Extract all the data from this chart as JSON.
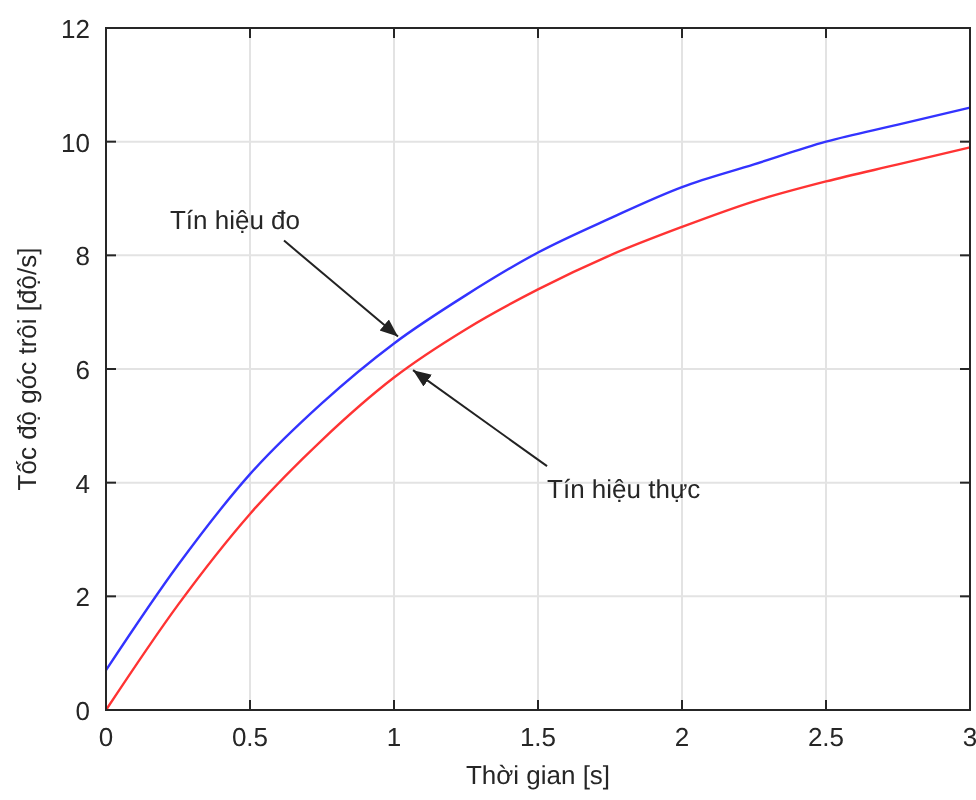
{
  "chart_data": {
    "type": "line",
    "xlabel": "Thời gian [s]",
    "ylabel": "Tốc độ góc trôi [độ/s]",
    "x": [
      0,
      0.25,
      0.5,
      0.75,
      1,
      1.25,
      1.5,
      1.75,
      2,
      2.25,
      2.5,
      2.75,
      3
    ],
    "series": [
      {
        "color": "#3333ff",
        "values": [
          0.7,
          2.55,
          4.15,
          5.4,
          6.45,
          7.3,
          8.05,
          8.65,
          9.2,
          9.6,
          10.0,
          10.3,
          10.6
        ]
      },
      {
        "color": "#ff3333",
        "values": [
          0,
          1.85,
          3.45,
          4.75,
          5.85,
          6.7,
          7.4,
          8.0,
          8.5,
          8.95,
          9.3,
          9.6,
          9.9
        ]
      }
    ],
    "xlim": [
      0,
      3
    ],
    "xticks": [
      0,
      0.5,
      1,
      1.5,
      2,
      2.5,
      3
    ],
    "ylim": [
      0,
      12
    ],
    "yticks": [
      0,
      2,
      4,
      6,
      8,
      10,
      12
    ],
    "grid": true,
    "marker": "none",
    "line_style": "solid",
    "annotations": [
      {
        "text": "Tín hiệu đo",
        "x": 1.0,
        "y": 6.5
      },
      {
        "text": "Tín hiệu thực",
        "x": 1.08,
        "y": 6.05
      }
    ]
  }
}
